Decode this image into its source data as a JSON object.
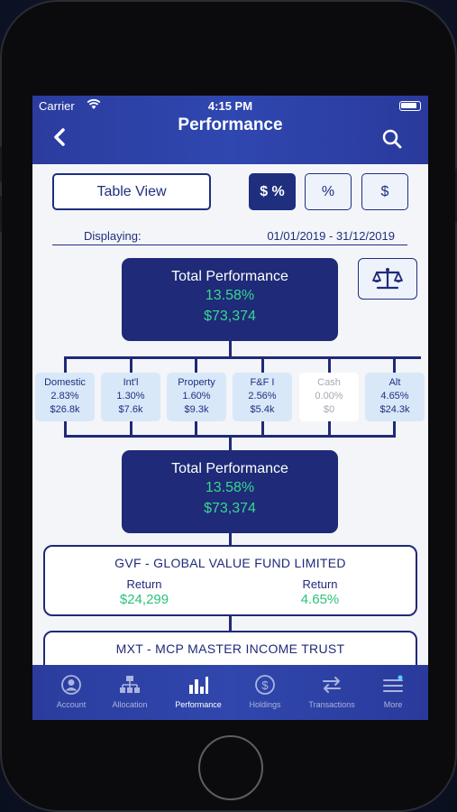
{
  "status": {
    "carrier": "Carrier",
    "time": "4:15 PM"
  },
  "header": {
    "title": "Performance"
  },
  "controls": {
    "table_view_label": "Table View",
    "seg_both": "$ %",
    "seg_percent": "%",
    "seg_dollar": "$"
  },
  "displaying": {
    "label": "Displaying:",
    "range": "01/01/2019 - 31/12/2019"
  },
  "total_top": {
    "title": "Total Performance",
    "percent": "13.58%",
    "amount": "$73,374"
  },
  "categories": [
    {
      "name": "Domestic",
      "percent": "2.83%",
      "amount": "$26.8k"
    },
    {
      "name": "Int'l",
      "percent": "1.30%",
      "amount": "$7.6k"
    },
    {
      "name": "Property",
      "percent": "1.60%",
      "amount": "$9.3k"
    },
    {
      "name": "F&F I",
      "percent": "2.56%",
      "amount": "$5.4k"
    },
    {
      "name": "Cash",
      "percent": "0.00%",
      "amount": "$0"
    },
    {
      "name": "Alt",
      "percent": "4.65%",
      "amount": "$24.3k"
    }
  ],
  "total_bottom": {
    "title": "Total Performance",
    "percent": "13.58%",
    "amount": "$73,374"
  },
  "funds": [
    {
      "name": "GVF - GLOBAL VALUE FUND LIMITED",
      "return_label_1": "Return",
      "return_value_1": "$24,299",
      "return_label_2": "Return",
      "return_value_2": "4.65%"
    },
    {
      "name": "MXT - MCP MASTER INCOME TRUST"
    }
  ],
  "tabs": [
    {
      "label": "Account",
      "icon": "user-icon"
    },
    {
      "label": "Allocation",
      "icon": "hierarchy-icon"
    },
    {
      "label": "Performance",
      "icon": "bar-chart-icon"
    },
    {
      "label": "Holdings",
      "icon": "dollar-coin-icon"
    },
    {
      "label": "Transactions",
      "icon": "swap-arrows-icon"
    },
    {
      "label": "More",
      "icon": "menu-icon"
    }
  ],
  "colors": {
    "navy": "#1f2a78",
    "header_blue": "#2f47b0",
    "positive_green": "#38d88d",
    "muted": "#a4a9b4"
  }
}
